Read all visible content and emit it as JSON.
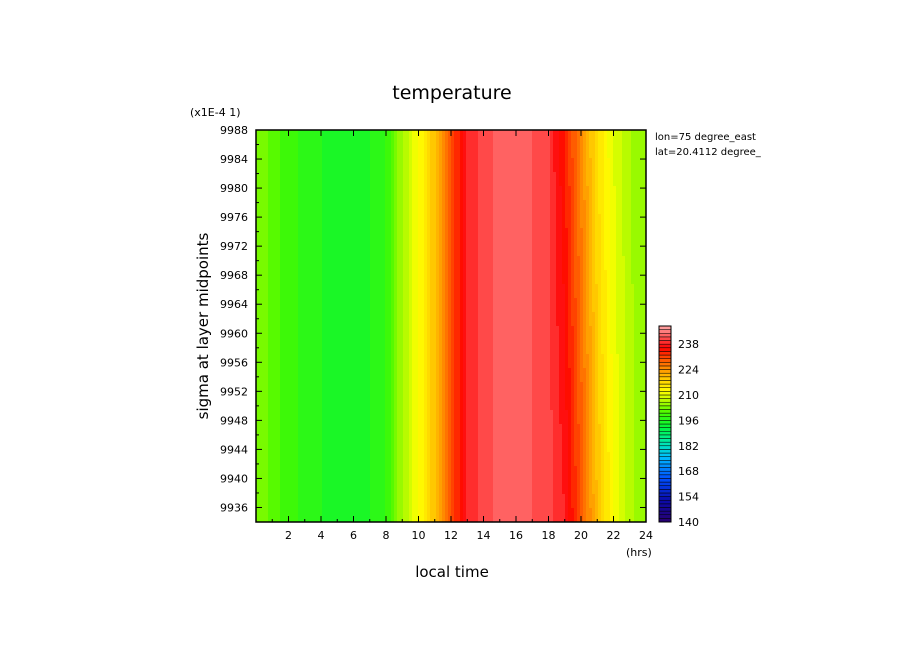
{
  "chart_data": {
    "type": "heatmap",
    "title": "temperature",
    "xlabel": "local time",
    "ylabel": "sigma at layer midpoints",
    "x_units": "(hrs)",
    "y_scale_note": "(x1E-4 1)",
    "annotation_lines": [
      "lon=75 degree_east",
      "lat=20.4112 degree_"
    ],
    "xlim": [
      0,
      24
    ],
    "ylim": [
      9988,
      9934
    ],
    "x_ticks": [
      2,
      4,
      6,
      8,
      10,
      12,
      14,
      16,
      18,
      20,
      22,
      24
    ],
    "y_ticks": [
      9936,
      9940,
      9944,
      9948,
      9952,
      9956,
      9960,
      9964,
      9968,
      9972,
      9976,
      9980,
      9984,
      9988
    ],
    "colorbar": {
      "min": 140,
      "max": 248,
      "step": 2,
      "tick_labels": [
        140,
        154,
        168,
        182,
        196,
        210,
        224,
        238
      ]
    },
    "series": [
      {
        "x": [
          0,
          1,
          2,
          3,
          4,
          5,
          6,
          7,
          8,
          9,
          10,
          11,
          12,
          13,
          14,
          15,
          16,
          17,
          18,
          19,
          20,
          21,
          22,
          23,
          24
        ],
        "top_values": [
          204,
          201,
          199,
          197,
          196,
          195,
          195,
          196,
          198,
          206,
          212,
          220,
          230,
          238,
          241,
          243,
          243,
          242,
          240,
          234,
          225,
          216,
          210,
          206,
          204
        ],
        "bottom_values": [
          204,
          201,
          199,
          197,
          196,
          195,
          195,
          196,
          198,
          206,
          212,
          220,
          230,
          238,
          241,
          243,
          243,
          242,
          241,
          238,
          230,
          220,
          212,
          207,
          204
        ]
      }
    ]
  }
}
